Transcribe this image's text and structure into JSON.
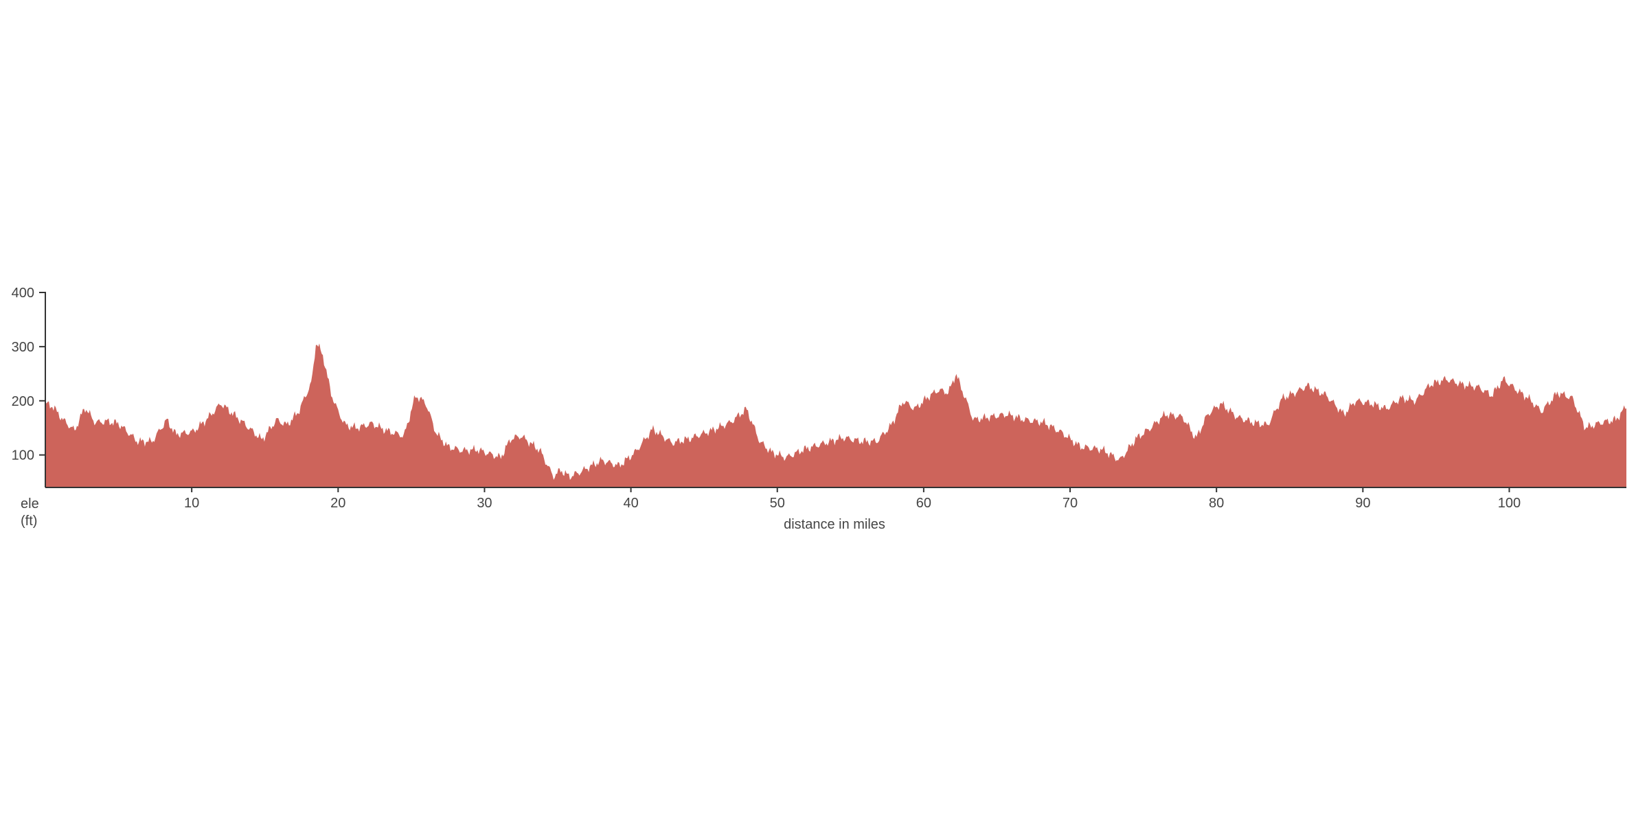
{
  "chart_data": {
    "type": "area",
    "title": "",
    "xlabel": "distance in miles",
    "ylabel_line1": "ele",
    "ylabel_line2": "(ft)",
    "xlim": [
      0,
      108
    ],
    "ylim": [
      40,
      400
    ],
    "x_ticks": [
      10,
      20,
      30,
      40,
      50,
      60,
      70,
      80,
      90,
      100
    ],
    "y_ticks": [
      100,
      200,
      300,
      400
    ],
    "grid": false,
    "fill_color": "#cd645b",
    "axis_color": "#333333",
    "text_color": "#444444",
    "series": [
      {
        "x": [
          0,
          0.5,
          1.2,
          2.0,
          2.7,
          3.4,
          4.2,
          5.0,
          6.3,
          7.3,
          8.3,
          8.9,
          10.1,
          11.0,
          12.0,
          13.5,
          14.8,
          15.8,
          16.5,
          17.3,
          18.2,
          18.5,
          19.0,
          19.5,
          20.0,
          20.5,
          21.3,
          22.3,
          23.3,
          24.5,
          25.3,
          26.0,
          26.7,
          27.5,
          28.5,
          29.5,
          31.1,
          31.8,
          32.5,
          33.8,
          34.7,
          35.2,
          35.8,
          36.5,
          38.0,
          39.2,
          40.3,
          41.5,
          42.8,
          44.0,
          45.5,
          46.8,
          47.9,
          48.8,
          49.6,
          50.6,
          51.8,
          53.0,
          54.5,
          55.8,
          56.8,
          57.8,
          58.6,
          59.4,
          60.2,
          61.0,
          61.7,
          62.2,
          63.4,
          64.5,
          65.7,
          66.9,
          68.2,
          69.5,
          70.7,
          72.2,
          73.4,
          74.5,
          75.5,
          76.5,
          77.7,
          78.6,
          79.4,
          80.3,
          81.4,
          82.5,
          83.5,
          84.5,
          85.4,
          86.2,
          87.5,
          88.7,
          89.5,
          90.6,
          91.6,
          92.6,
          93.6,
          94.6,
          95.7,
          96.8,
          97.9,
          98.8,
          99.6,
          100.5,
          101.3,
          102.2,
          103.3,
          104.3,
          105.2,
          106.3,
          107.3,
          108.0
        ],
        "y": [
          195,
          190,
          165,
          145,
          188,
          160,
          162,
          158,
          125,
          125,
          165,
          138,
          143,
          165,
          195,
          160,
          128,
          165,
          155,
          180,
          235,
          310,
          280,
          215,
          180,
          155,
          150,
          158,
          145,
          135,
          210,
          195,
          140,
          115,
          108,
          110,
          95,
          130,
          135,
          108,
          60,
          72,
          60,
          68,
          90,
          80,
          105,
          148,
          122,
          130,
          145,
          160,
          185,
          125,
          105,
          95,
          110,
          120,
          132,
          125,
          125,
          155,
          200,
          185,
          205,
          220,
          215,
          250,
          165,
          170,
          175,
          165,
          160,
          140,
          115,
          110,
          90,
          130,
          150,
          175,
          170,
          130,
          175,
          195,
          170,
          160,
          155,
          205,
          215,
          228,
          210,
          175,
          200,
          195,
          185,
          205,
          200,
          230,
          240,
          230,
          225,
          210,
          240,
          220,
          205,
          180,
          215,
          205,
          150,
          160,
          165,
          190
        ]
      }
    ]
  }
}
